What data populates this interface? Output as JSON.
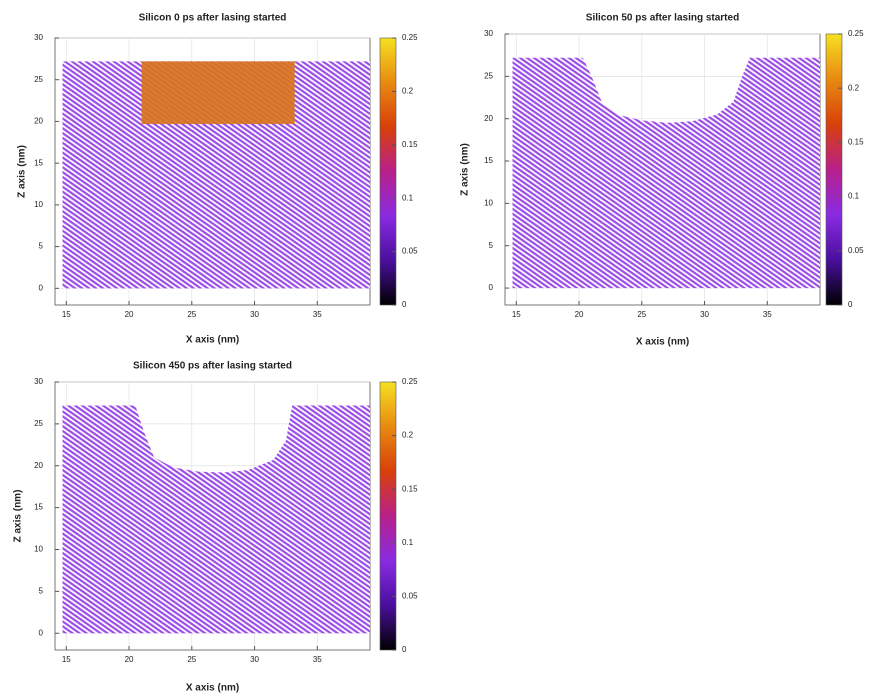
{
  "chart_data": [
    {
      "type": "atom-map",
      "title": "Silicon 0 ps after lasing started",
      "xlabel": "X axis (nm)",
      "ylabel": "Z axis (nm)",
      "xlim": [
        14.1,
        39.2
      ],
      "ylim": [
        -2,
        30
      ],
      "xticks": [
        15,
        20,
        25,
        30,
        35
      ],
      "yticks": [
        0,
        5,
        10,
        15,
        20,
        25,
        30
      ],
      "grid": true,
      "color": "#9b4de8",
      "surface_x": [
        14.7,
        39.2
      ],
      "surface_z": [
        27.2,
        27.2
      ],
      "highlight": {
        "x": [
          21,
          33.2
        ],
        "z": [
          19.7,
          27.2
        ],
        "color": "#d8741c"
      },
      "colorbar": {
        "lim": [
          0,
          0.25
        ],
        "ticks": [
          0,
          0.05,
          0.1,
          0.15,
          0.2,
          0.25
        ],
        "colors": [
          "#000000",
          "#4a0f9e",
          "#8a2be2",
          "#b8208a",
          "#d8400a",
          "#e88a10",
          "#f6e020"
        ]
      }
    },
    {
      "type": "atom-map",
      "title": "Silicon 50 ps after lasing started",
      "xlabel": "X axis (nm)",
      "ylabel": "Z axis (nm)",
      "xlim": [
        14.1,
        39.2
      ],
      "ylim": [
        -2,
        30
      ],
      "xticks": [
        15,
        20,
        25,
        30,
        35
      ],
      "yticks": [
        0,
        5,
        10,
        15,
        20,
        25,
        30
      ],
      "grid": true,
      "color": "#9b4de8",
      "surface_x": [
        14.7,
        20.3,
        21,
        21.8,
        23,
        25,
        27,
        29,
        31,
        32.3,
        33,
        33.6,
        39.2
      ],
      "surface_z": [
        27.2,
        27.2,
        25,
        22,
        20.5,
        19.8,
        19.5,
        19.7,
        20.5,
        22,
        25,
        27.2,
        27.2
      ],
      "colorbar": {
        "lim": [
          0,
          0.25
        ],
        "ticks": [
          0,
          0.05,
          0.1,
          0.15,
          0.2,
          0.25
        ],
        "colors": [
          "#000000",
          "#4a0f9e",
          "#8a2be2",
          "#b8208a",
          "#d8400a",
          "#e88a10",
          "#f6e020"
        ]
      }
    },
    {
      "type": "atom-map",
      "title": "Silicon 450 ps after lasing started",
      "xlabel": "X axis (nm)",
      "ylabel": "Z axis (nm)",
      "xlim": [
        14.1,
        39.2
      ],
      "ylim": [
        -2,
        30
      ],
      "xticks": [
        15,
        20,
        25,
        30,
        35
      ],
      "yticks": [
        0,
        5,
        10,
        15,
        20,
        25,
        30
      ],
      "grid": true,
      "color": "#9b4de8",
      "surface_x": [
        14.7,
        20.5,
        21.2,
        22,
        23.5,
        25.5,
        27.5,
        29.5,
        31.5,
        32.5,
        33,
        39.2
      ],
      "surface_z": [
        27.2,
        27.2,
        24,
        21,
        19.8,
        19.3,
        19.2,
        19.5,
        20.7,
        23,
        27.2,
        27.2
      ],
      "colorbar": {
        "lim": [
          0,
          0.25
        ],
        "ticks": [
          0,
          0.05,
          0.1,
          0.15,
          0.2,
          0.25
        ],
        "colors": [
          "#000000",
          "#4a0f9e",
          "#8a2be2",
          "#b8208a",
          "#d8400a",
          "#e88a10",
          "#f6e020"
        ]
      }
    }
  ]
}
